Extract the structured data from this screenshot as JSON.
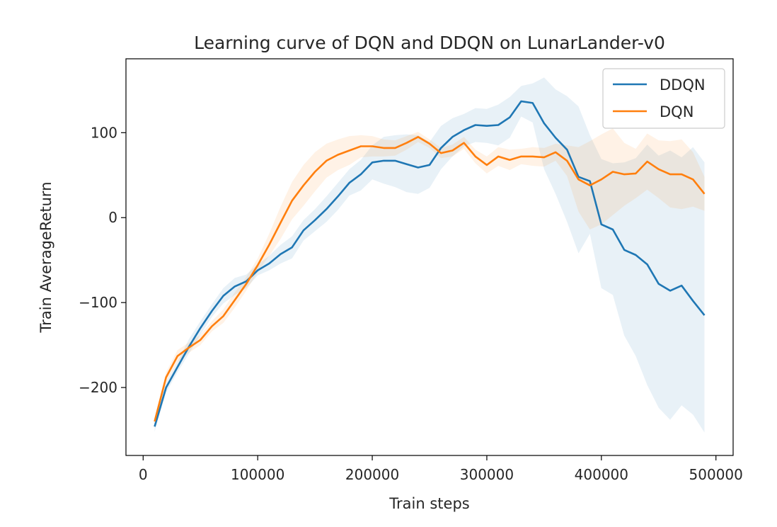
{
  "chart_data": {
    "type": "line",
    "title": "Learning curve of DQN and DDQN on LunarLander-v0",
    "xlabel": "Train steps",
    "ylabel": "Train AverageReturn",
    "xlim": [
      -15000,
      515000
    ],
    "ylim": [
      -280,
      187
    ],
    "xticks": [
      0,
      100000,
      200000,
      300000,
      400000,
      500000
    ],
    "yticks": [
      -200,
      -100,
      0,
      100
    ],
    "grid": false,
    "legend_position": "top-right",
    "series": [
      {
        "name": "DDQN",
        "color": "#1f77b4",
        "x": [
          10000,
          20000,
          30000,
          40000,
          50000,
          60000,
          70000,
          80000,
          90000,
          100000,
          110000,
          120000,
          130000,
          140000,
          150000,
          160000,
          170000,
          180000,
          190000,
          200000,
          210000,
          220000,
          230000,
          240000,
          250000,
          260000,
          270000,
          280000,
          290000,
          300000,
          310000,
          320000,
          330000,
          340000,
          350000,
          360000,
          370000,
          380000,
          390000,
          400000,
          410000,
          420000,
          430000,
          440000,
          450000,
          460000,
          470000,
          480000,
          490000
        ],
        "y": [
          -246,
          -200,
          -176,
          -152,
          -130,
          -110,
          -92,
          -81,
          -75,
          -62,
          -54,
          -43,
          -35,
          -15,
          -3,
          10,
          25,
          41,
          51,
          65,
          67,
          67,
          63,
          59,
          62,
          82,
          95,
          103,
          109,
          108,
          109,
          118,
          137,
          135,
          111,
          94,
          80,
          48,
          43,
          -8,
          -14,
          -38,
          -44,
          -55,
          -78,
          -86,
          -80,
          -98,
          -115
        ],
        "band_upper": [
          -240,
          -194,
          -170,
          -143,
          -122,
          -102,
          -83,
          -71,
          -67,
          -55,
          -45,
          -32,
          -22,
          -3,
          10,
          25,
          41,
          57,
          68,
          85,
          95,
          97,
          98,
          97,
          89,
          108,
          117,
          122,
          129,
          128,
          133,
          142,
          155,
          158,
          165,
          151,
          143,
          131,
          97,
          69,
          64,
          65,
          70,
          86,
          73,
          79,
          71,
          83,
          65
        ],
        "band_lower": [
          -252,
          -206,
          -182,
          -160,
          -138,
          -117,
          -101,
          -91,
          -83,
          -68,
          -62,
          -54,
          -48,
          -27,
          -16,
          -5,
          9,
          26,
          32,
          45,
          40,
          36,
          30,
          28,
          35,
          57,
          72,
          84,
          89,
          88,
          85,
          94,
          119,
          112,
          57,
          28,
          -5,
          -42,
          -19,
          -83,
          -91,
          -139,
          -163,
          -197,
          -224,
          -238,
          -221,
          -232,
          -253
        ]
      },
      {
        "name": "DQN",
        "color": "#ff7f0e",
        "x": [
          10000,
          20000,
          30000,
          40000,
          50000,
          60000,
          70000,
          80000,
          90000,
          100000,
          110000,
          120000,
          130000,
          140000,
          150000,
          160000,
          170000,
          180000,
          190000,
          200000,
          210000,
          220000,
          230000,
          240000,
          250000,
          260000,
          270000,
          280000,
          290000,
          300000,
          310000,
          320000,
          330000,
          340000,
          350000,
          360000,
          370000,
          380000,
          390000,
          400000,
          410000,
          420000,
          430000,
          440000,
          450000,
          460000,
          470000,
          480000,
          490000
        ],
        "y": [
          -240,
          -188,
          -163,
          -153,
          -144,
          -128,
          -116,
          -97,
          -78,
          -56,
          -32,
          -6,
          20,
          38,
          54,
          67,
          74,
          79,
          84,
          84,
          82,
          82,
          88,
          95,
          87,
          76,
          79,
          88,
          72,
          62,
          72,
          68,
          72,
          72,
          71,
          77,
          67,
          45,
          38,
          45,
          54,
          51,
          52,
          66,
          57,
          51,
          51,
          45,
          28
        ],
        "band_upper": [
          -236,
          -182,
          -156,
          -147,
          -138,
          -122,
          -108,
          -88,
          -70,
          -48,
          -19,
          13,
          42,
          62,
          77,
          87,
          92,
          96,
          97,
          96,
          92,
          91,
          96,
          101,
          92,
          82,
          86,
          95,
          80,
          72,
          83,
          80,
          81,
          83,
          82,
          87,
          85,
          83,
          90,
          98,
          105,
          88,
          81,
          99,
          91,
          90,
          92,
          77,
          48
        ],
        "band_lower": [
          -244,
          -194,
          -170,
          -159,
          -150,
          -134,
          -124,
          -106,
          -86,
          -64,
          -45,
          -25,
          -2,
          14,
          31,
          47,
          56,
          62,
          71,
          72,
          72,
          73,
          80,
          89,
          82,
          70,
          72,
          81,
          64,
          52,
          61,
          56,
          63,
          61,
          60,
          67,
          49,
          7,
          -14,
          -8,
          3,
          14,
          23,
          33,
          23,
          12,
          10,
          13,
          8
        ]
      }
    ]
  }
}
